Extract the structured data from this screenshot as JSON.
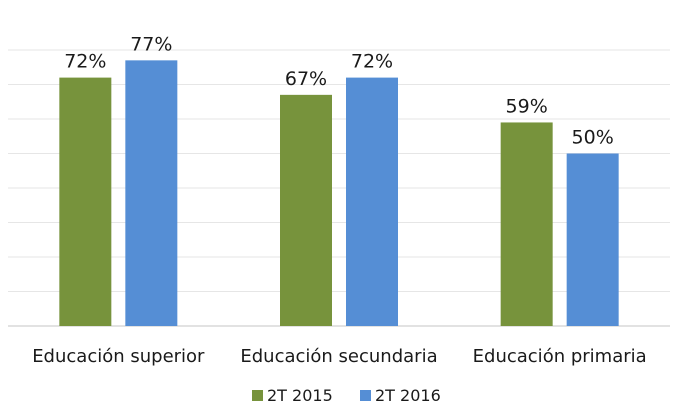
{
  "chart_data": {
    "type": "bar",
    "categories": [
      "Educación superior",
      "Educación secundaria",
      "Educación primaria"
    ],
    "series": [
      {
        "name": "2T 2015",
        "color": "#77933c",
        "values": [
          72,
          67,
          59
        ],
        "labels": [
          "72%",
          "67%",
          "59%"
        ]
      },
      {
        "name": "2T 2016",
        "color": "#558ed5",
        "values": [
          77,
          72,
          50
        ],
        "labels": [
          "77%",
          "72%",
          "50%"
        ]
      }
    ],
    "ylim": [
      0,
      80
    ],
    "grid": true,
    "legend_position": "bottom",
    "gridline_color": "#e6e6e6"
  }
}
